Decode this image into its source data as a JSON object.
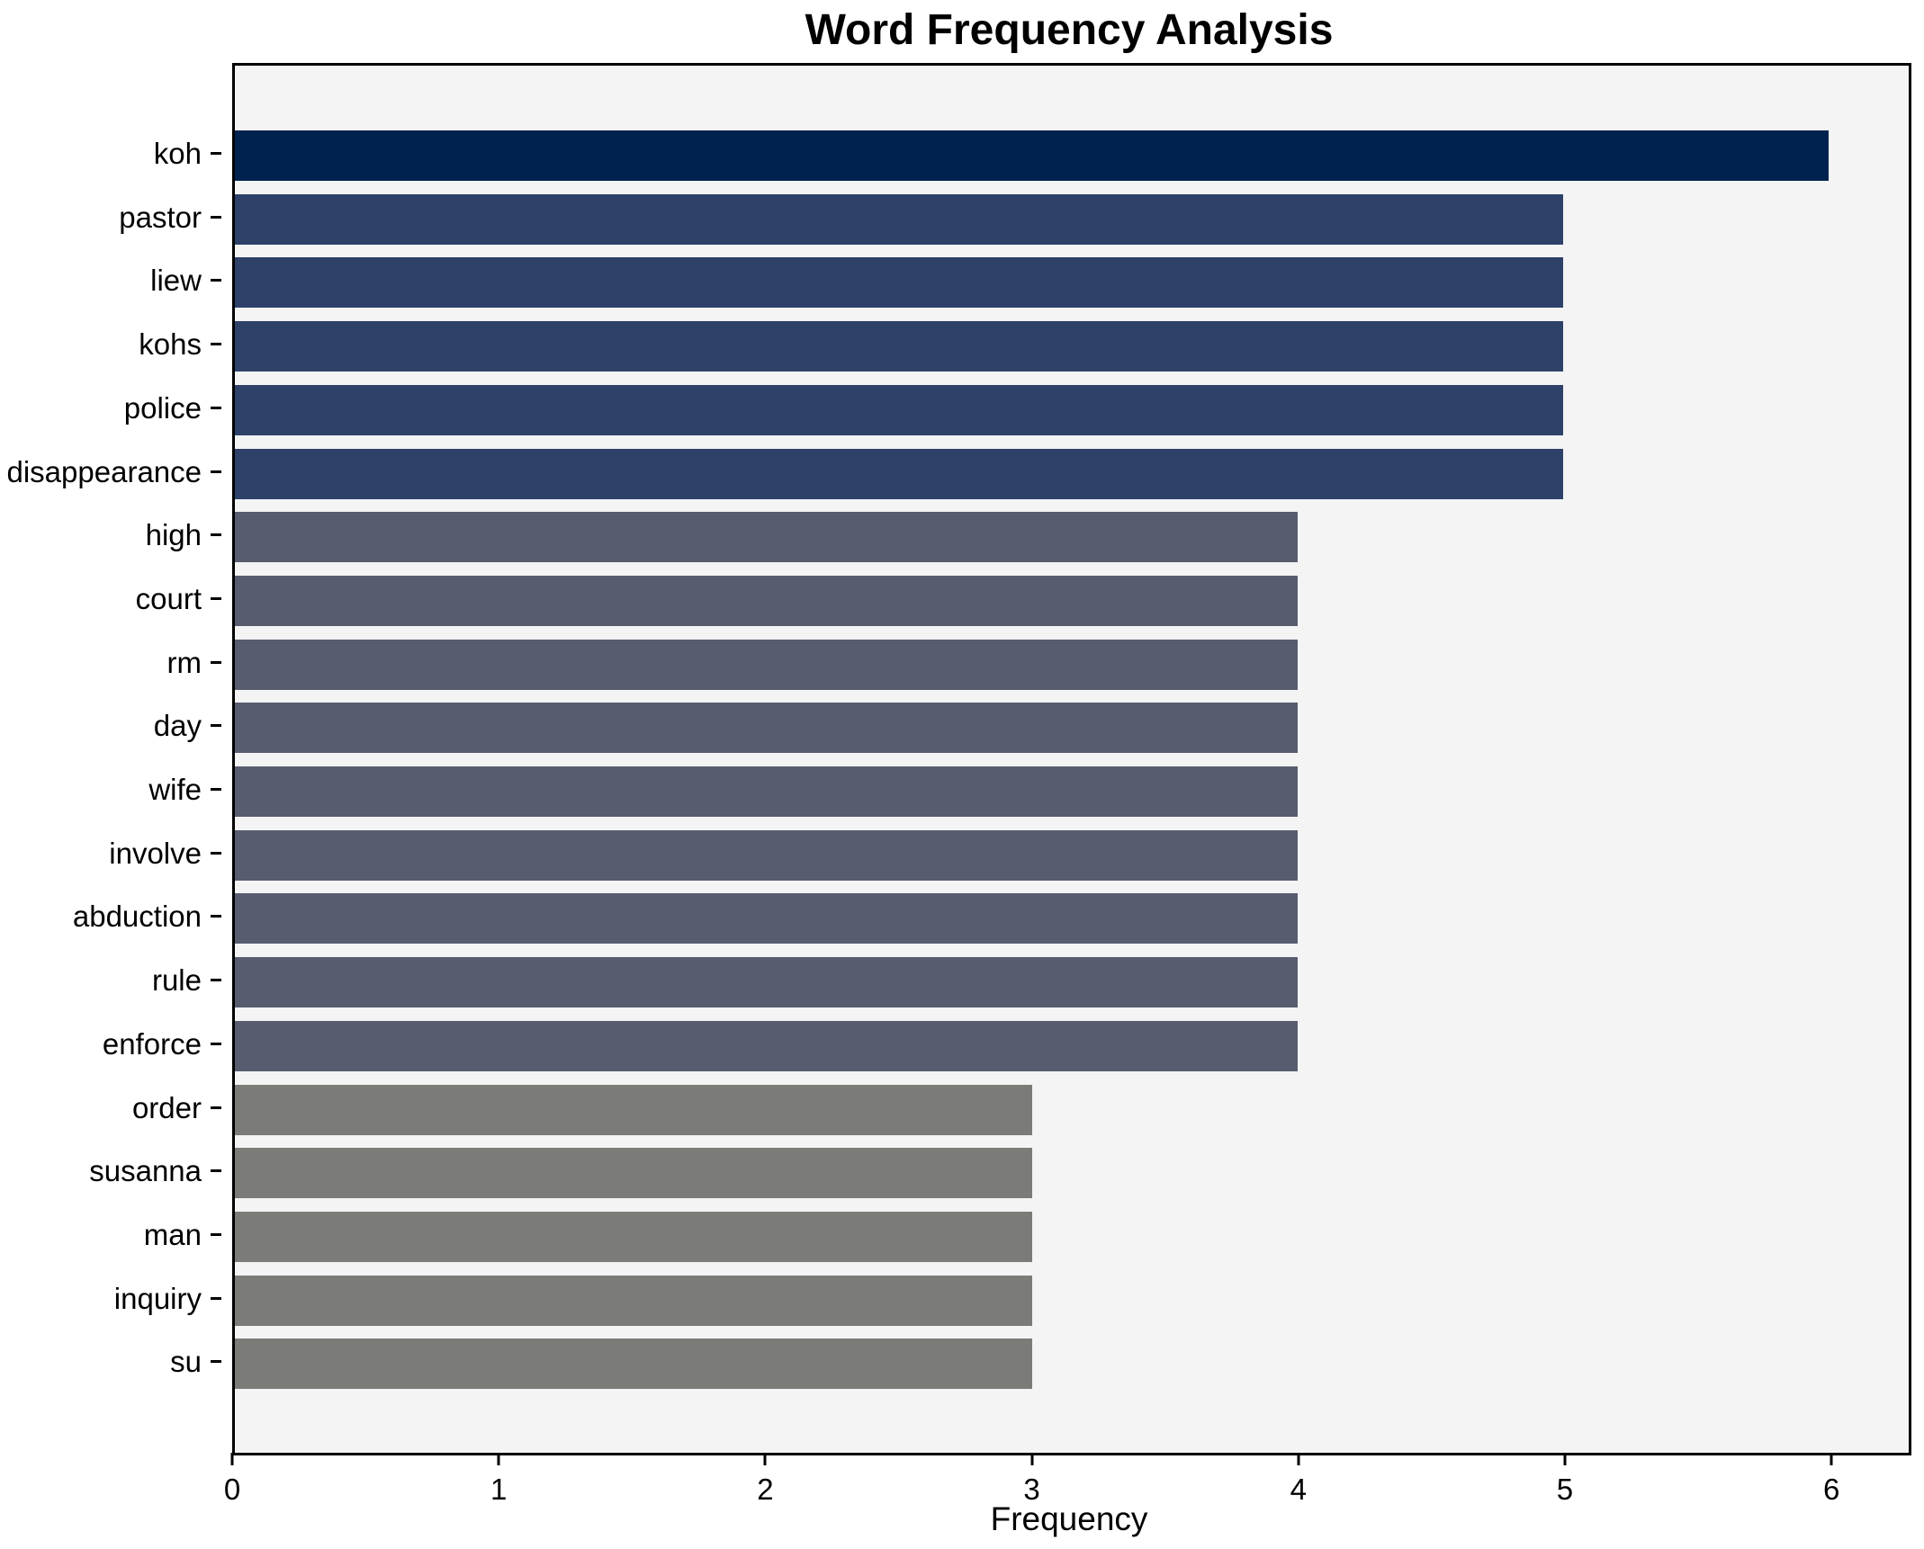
{
  "chart_data": {
    "type": "bar",
    "orientation": "horizontal",
    "title": "Word Frequency Analysis",
    "xlabel": "Frequency",
    "ylabel": "",
    "categories": [
      "koh",
      "pastor",
      "liew",
      "kohs",
      "police",
      "disappearance",
      "high",
      "court",
      "rm",
      "day",
      "wife",
      "involve",
      "abduction",
      "rule",
      "enforce",
      "order",
      "susanna",
      "man",
      "inquiry",
      "su"
    ],
    "values": [
      6,
      5,
      5,
      5,
      5,
      5,
      4,
      4,
      4,
      4,
      4,
      4,
      4,
      4,
      4,
      3,
      3,
      3,
      3,
      3
    ],
    "xlim": [
      0,
      6.3
    ],
    "xticks": [
      0,
      1,
      2,
      3,
      4,
      5,
      6
    ],
    "grid": false,
    "legend": false,
    "colors": {
      "by_value": {
        "6": "#00224e",
        "5": "#2d4169",
        "4": "#575c6e",
        "3": "#7b7b77"
      },
      "plot_background": "#f4f4f5",
      "figure_background": "#ffffff",
      "spine": "#000000",
      "text": "#000000"
    }
  }
}
